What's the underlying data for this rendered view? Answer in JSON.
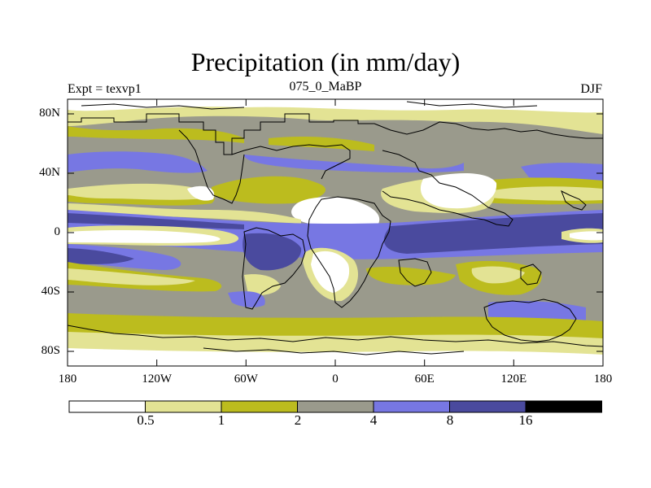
{
  "figure": {
    "title": "Precipitation (in mm/day)",
    "left_label": "Expt = texvp1",
    "center_label": "075_0_MaBP",
    "right_label": "DJF"
  },
  "axes": {
    "lat_ticks": [
      "80N",
      "40N",
      "0",
      "40S",
      "80S"
    ],
    "lon_ticks": [
      "180",
      "120W",
      "60W",
      "0",
      "60E",
      "120E",
      "180"
    ]
  },
  "colorbar": {
    "labels": [
      "0.5",
      "1",
      "2",
      "4",
      "8",
      "16"
    ],
    "colors": [
      "#ffffff",
      "#e3e394",
      "#bcbc1e",
      "#9a9a8c",
      "#7777e3",
      "#4a4a9e",
      "#000000"
    ]
  }
}
